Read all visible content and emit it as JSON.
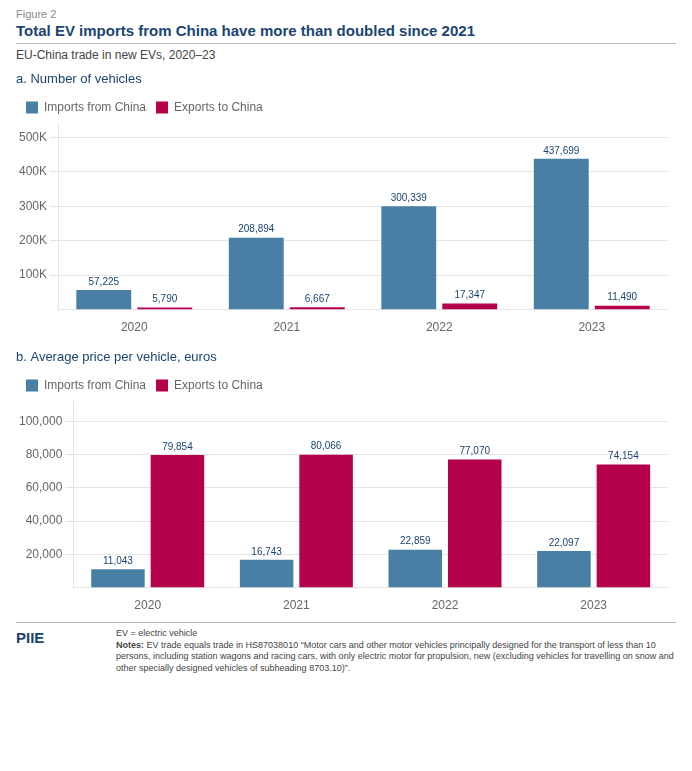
{
  "title": "Total EV imports from China have more than doubled since 2021",
  "subtitle": "EU-China trade in new EVs, 2020–23",
  "annotations": [
    "Figure 2",
    "PIIE",
    "EV = electric vehicle",
    "Notes:",
    "EV trade equals trade in HS87038010 “Motor cars and other motor vehicles principally designed for the transport of less than 10 persons, including station wagons and racing cars, with only electric motor for propulsion, new (excluding vehicles for travelling on snow and other specially designed vehicles of subheading 8703.10)”."
  ],
  "chart_data": [
    {
      "type": "bar",
      "title": "a. Number of vehicles",
      "categories": [
        "2020",
        "2021",
        "2022",
        "2023"
      ],
      "series": [
        {
          "name": "Imports from China",
          "color": "#4a7fa5",
          "values": [
            57225,
            208894,
            300339,
            437699
          ],
          "value_labels": [
            "57,225",
            "208,894",
            "300,339",
            "437,699"
          ]
        },
        {
          "name": "Exports to China",
          "color": "#b5004b",
          "values": [
            5790,
            6667,
            17347,
            11490
          ],
          "value_labels": [
            "5,790",
            "6,667",
            "17,347",
            "11,490"
          ]
        }
      ],
      "ylim": [
        0,
        540000
      ],
      "yticks": [
        {
          "value": 100000,
          "label": "100K"
        },
        {
          "value": 200000,
          "label": "200K"
        },
        {
          "value": 300000,
          "label": "300K"
        },
        {
          "value": 400000,
          "label": "400K"
        },
        {
          "value": 500000,
          "label": "500K"
        }
      ],
      "grid": true,
      "legend": "upper left",
      "data_labels": true
    },
    {
      "type": "bar",
      "title": "b. Average price per vehicle, euros",
      "categories": [
        "2020",
        "2021",
        "2022",
        "2023"
      ],
      "series": [
        {
          "name": "Imports from China",
          "color": "#4a7fa5",
          "values": [
            11043,
            16743,
            22859,
            22097
          ],
          "value_labels": [
            "11,043",
            "16,743",
            "22,859",
            "22,097"
          ]
        },
        {
          "name": "Exports to China",
          "color": "#b5004b",
          "values": [
            79854,
            80066,
            77070,
            74154
          ],
          "value_labels": [
            "79,854",
            "80,066",
            "77,070",
            "74,154"
          ]
        }
      ],
      "ylim": [
        0,
        112000
      ],
      "yticks": [
        {
          "value": 20000,
          "label": "20,000"
        },
        {
          "value": 40000,
          "label": "40,000"
        },
        {
          "value": 60000,
          "label": "60,000"
        },
        {
          "value": 80000,
          "label": "80,000"
        },
        {
          "value": 100000,
          "label": "100,000"
        }
      ],
      "grid": true,
      "legend": "upper left",
      "data_labels": true
    }
  ]
}
